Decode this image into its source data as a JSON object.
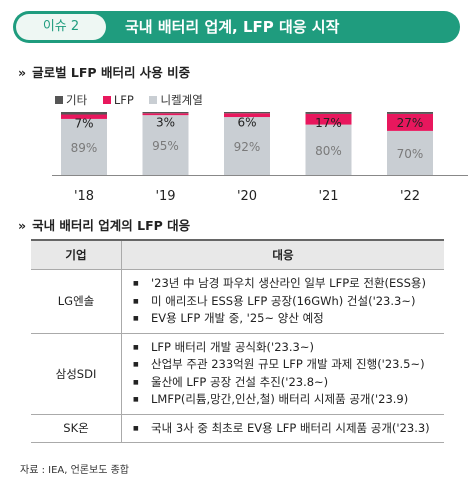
{
  "header": {
    "issue_label": "이슈 2",
    "title": "국내 배터리 업계, LFP 대응 시작"
  },
  "section1": {
    "arrow": "»",
    "title": "글로벌 LFP 배터리 사용 비중"
  },
  "colors": {
    "accent": "#1f9c7e",
    "other": "#555555",
    "lfp": "#e8175d",
    "nickel": "#c9ced3",
    "label_on_nickel": "#7a7a7a"
  },
  "chart_data": {
    "type": "bar",
    "stacked": true,
    "percent": true,
    "categories": [
      "'18",
      "'19",
      "'20",
      "'21",
      "'22"
    ],
    "series": [
      {
        "name": "니켈계열",
        "values": [
          89,
          95,
          92,
          80,
          70
        ]
      },
      {
        "name": "LFP",
        "values": [
          7,
          3,
          6,
          17,
          27
        ]
      },
      {
        "name": "기타",
        "values": [
          4,
          2,
          2,
          3,
          3
        ]
      }
    ],
    "legend": [
      "기타",
      "LFP",
      "니켈계열"
    ],
    "legend_position": "top-left",
    "ylim": [
      0,
      100
    ],
    "value_label_suffix": "%"
  },
  "section2": {
    "arrow": "»",
    "title": "국내 배터리 업계의 LFP 대응"
  },
  "table": {
    "headers": [
      "기업",
      "대응"
    ],
    "rows": [
      {
        "company": "LG엔솔",
        "items": [
          "'23년 中 남경 파우치 생산라인 일부 LFP로 전환(ESS용)",
          "미 애리조나 ESS용 LFP 공장(16GWh) 건설('23.3~)",
          "EV용 LFP 개발 중, '25~ 양산 예정"
        ]
      },
      {
        "company": "삼성SDI",
        "items": [
          "LFP 배터리 개발 공식화('23.3~)",
          "산업부 주관 233억원 규모 LFP 개발 과제 진행('23.5~)",
          "울산에 LFP 공장 건설 추진('23.8~)",
          "LMFP(리튬,망간,인산,철) 배터리 시제품 공개('23.9)"
        ]
      },
      {
        "company": "SK온",
        "items": [
          "국내 3사 중 최초로 EV용 LFP 배터리 시제품 공개('23.3)"
        ]
      }
    ]
  },
  "source": "자료 : IEA, 언론보도 종합"
}
